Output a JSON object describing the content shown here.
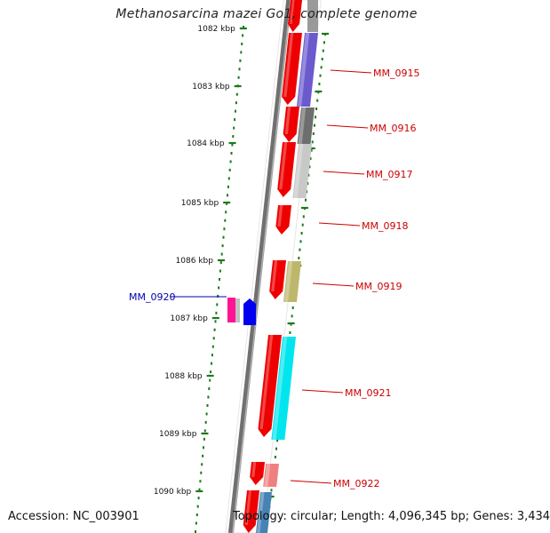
{
  "title": "Methanosarcina mazei Go1, complete genome",
  "accession": "Accession: NC_003901",
  "topology": "Topology: circular; Length: 4,096,345 bp; Genes: 3,434",
  "colors": {
    "background": "#ffffff",
    "backbone": "#808080",
    "tick": "#1a7a1a",
    "gene_label_forward": "#cc0000",
    "gene_label_reverse": "#0000aa",
    "cds_red": "#ee0000"
  },
  "ticks": [
    {
      "label": "1082 kbp"
    },
    {
      "label": "1083 kbp"
    },
    {
      "label": "1084 kbp"
    },
    {
      "label": "1085 kbp"
    },
    {
      "label": "1086 kbp"
    },
    {
      "label": "1087 kbp"
    },
    {
      "label": "1088 kbp"
    },
    {
      "label": "1089 kbp"
    },
    {
      "label": "1090 kbp"
    }
  ],
  "genes": [
    {
      "label": "MM_0915",
      "strand": "forward",
      "color": "#6a5acd"
    },
    {
      "label": "MM_0916",
      "strand": "forward",
      "color": "#6e6e6e"
    },
    {
      "label": "MM_0917",
      "strand": "forward",
      "color": "#c8c8c8"
    },
    {
      "label": "MM_0918",
      "strand": "forward",
      "color": ""
    },
    {
      "label": "MM_0919",
      "strand": "forward",
      "color": "#bdb76b"
    },
    {
      "label": "MM_0920",
      "strand": "reverse",
      "color": "#ff1493"
    },
    {
      "label": "MM_0921",
      "strand": "forward",
      "color": "#00e5ee"
    },
    {
      "label": "MM_0922",
      "strand": "forward",
      "color": "#f08080"
    }
  ]
}
